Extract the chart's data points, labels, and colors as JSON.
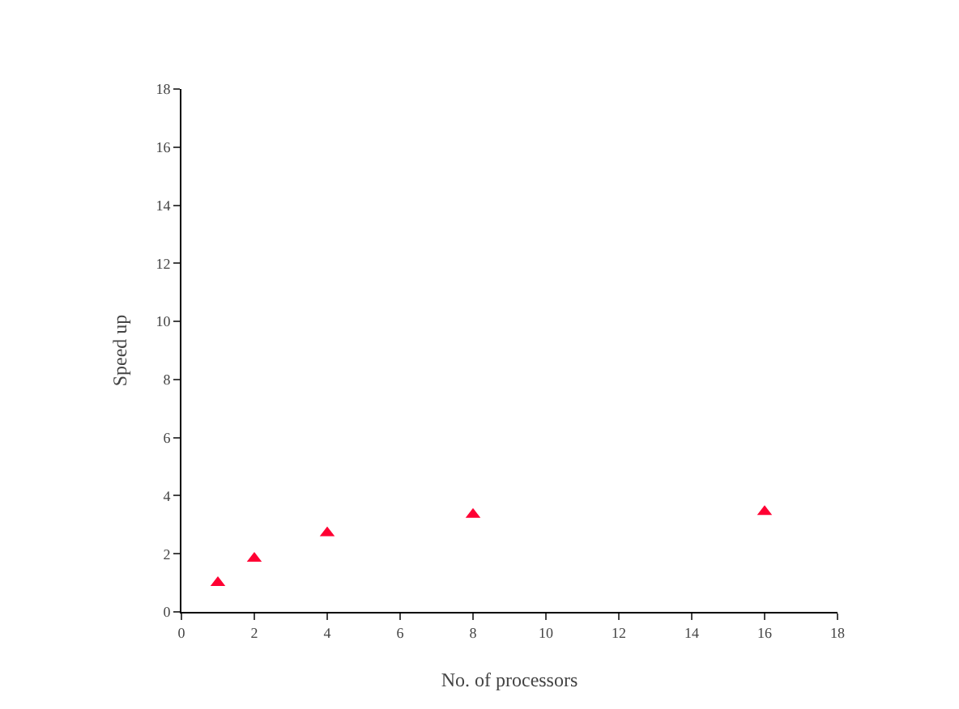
{
  "chart_data": {
    "type": "scatter",
    "xlabel": "No. of processors",
    "ylabel": "Speed up",
    "x": [
      1,
      2,
      4,
      8,
      16
    ],
    "series": [
      {
        "color": "#ff0033",
        "values": [
          1.0,
          1.84,
          2.72,
          3.35,
          3.45
        ]
      }
    ],
    "xlim": [
      0,
      18
    ],
    "xticks": [
      0,
      2,
      4,
      6,
      8,
      10,
      12,
      14,
      16,
      18
    ],
    "ylim": [
      0,
      18
    ],
    "yticks": [
      0,
      2,
      4,
      6,
      8,
      10,
      12,
      14,
      16,
      18
    ],
    "marker": "triangle"
  }
}
